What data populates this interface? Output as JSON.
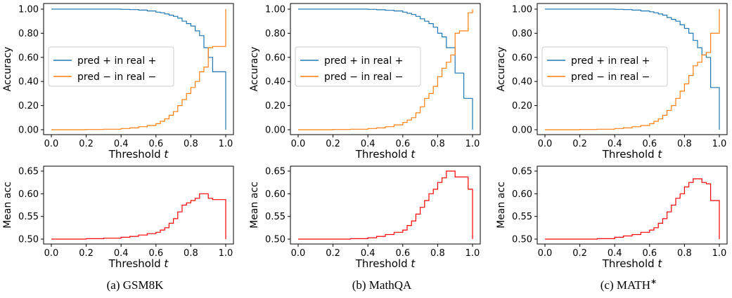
{
  "panels": [
    {
      "caption": "(a) GSM8K",
      "top": {
        "ylabel": "Accuracy",
        "xlabel": "Threshold t",
        "xticks": [
          "0.0",
          "0.2",
          "0.4",
          "0.6",
          "0.8",
          "1.0"
        ],
        "yticks": [
          "0.00",
          "0.20",
          "0.40",
          "0.60",
          "0.80",
          "1.00"
        ],
        "legend": [
          "pred + in real +",
          "pred − in real −"
        ]
      },
      "bottom": {
        "ylabel": "Mean acc",
        "xlabel": "Threshold t",
        "xticks": [
          "0.0",
          "0.2",
          "0.4",
          "0.6",
          "0.8",
          "1.0"
        ],
        "yticks": [
          "0.50",
          "0.55",
          "0.60",
          "0.65"
        ]
      }
    },
    {
      "caption": "(b) MathQA",
      "top": {
        "ylabel": "Accuracy",
        "xlabel": "Threshold t",
        "xticks": [
          "0.0",
          "0.2",
          "0.4",
          "0.6",
          "0.8",
          "1.0"
        ],
        "yticks": [
          "0.00",
          "0.20",
          "0.40",
          "0.60",
          "0.80",
          "1.00"
        ],
        "legend": [
          "pred + in real +",
          "pred − in real −"
        ]
      },
      "bottom": {
        "ylabel": "Mean acc",
        "xlabel": "Threshold t",
        "xticks": [
          "0.0",
          "0.2",
          "0.4",
          "0.6",
          "0.8",
          "1.0"
        ],
        "yticks": [
          "0.50",
          "0.55",
          "0.60",
          "0.65"
        ]
      }
    },
    {
      "caption": "(c) MATH*",
      "top": {
        "ylabel": "Accuracy",
        "xlabel": "Threshold t",
        "xticks": [
          "0.0",
          "0.2",
          "0.4",
          "0.6",
          "0.8",
          "1.0"
        ],
        "yticks": [
          "0.00",
          "0.20",
          "0.40",
          "0.60",
          "0.80",
          "1.00"
        ],
        "legend": [
          "pred + in real +",
          "pred − in real −"
        ]
      },
      "bottom": {
        "ylabel": "Mean acc",
        "xlabel": "Threshold t",
        "xticks": [
          "0.0",
          "0.2",
          "0.4",
          "0.6",
          "0.8",
          "1.0"
        ],
        "yticks": [
          "0.50",
          "0.55",
          "0.60",
          "0.65"
        ]
      }
    }
  ],
  "colors": {
    "pos": "#1f77b4",
    "neg": "#ff7f0e",
    "mean": "#ff0000"
  },
  "chart_data": [
    {
      "type": "line",
      "panel": "(a) GSM8K",
      "xlabel": "Threshold t",
      "ylabel": "Accuracy",
      "xlim": [
        0,
        1
      ],
      "ylim": [
        0,
        1
      ],
      "legend_position": "center-left",
      "x": [
        0.0,
        0.1,
        0.2,
        0.3,
        0.4,
        0.45,
        0.5,
        0.55,
        0.6,
        0.625,
        0.65,
        0.675,
        0.7,
        0.725,
        0.75,
        0.775,
        0.8,
        0.825,
        0.85,
        0.875,
        0.9,
        0.925,
        0.95,
        0.975,
        0.99,
        1.0
      ],
      "series": [
        {
          "name": "pred + in real +",
          "values": [
            1.0,
            1.0,
            1.0,
            1.0,
            0.998,
            0.996,
            0.992,
            0.985,
            0.975,
            0.97,
            0.96,
            0.95,
            0.94,
            0.925,
            0.9,
            0.88,
            0.86,
            0.82,
            0.78,
            0.68,
            0.6,
            0.48,
            0.48,
            0.48,
            0.48,
            0.0
          ]
        },
        {
          "name": "pred − in real −",
          "values": [
            0.0,
            0.0,
            0.002,
            0.004,
            0.01,
            0.015,
            0.025,
            0.035,
            0.05,
            0.07,
            0.09,
            0.12,
            0.15,
            0.2,
            0.25,
            0.3,
            0.35,
            0.4,
            0.48,
            0.52,
            0.68,
            0.69,
            0.69,
            0.69,
            0.69,
            1.0
          ]
        }
      ]
    },
    {
      "type": "line",
      "panel": "(a) GSM8K",
      "xlabel": "Threshold t",
      "ylabel": "Mean acc",
      "xlim": [
        0,
        1
      ],
      "ylim": [
        0.49,
        0.66
      ],
      "x": [
        0.0,
        0.1,
        0.2,
        0.3,
        0.4,
        0.45,
        0.5,
        0.55,
        0.6,
        0.625,
        0.65,
        0.675,
        0.7,
        0.725,
        0.75,
        0.775,
        0.8,
        0.825,
        0.85,
        0.875,
        0.9,
        0.925,
        0.95,
        0.975,
        0.99,
        1.0
      ],
      "series": [
        {
          "name": "",
          "values": [
            0.5,
            0.5,
            0.501,
            0.502,
            0.504,
            0.506,
            0.509,
            0.512,
            0.515,
            0.52,
            0.525,
            0.535,
            0.545,
            0.56,
            0.575,
            0.58,
            0.585,
            0.59,
            0.6,
            0.6,
            0.59,
            0.587,
            0.587,
            0.587,
            0.587,
            0.5
          ]
        }
      ]
    },
    {
      "type": "line",
      "panel": "(b) MathQA",
      "xlabel": "Threshold t",
      "ylabel": "Accuracy",
      "xlim": [
        0,
        1
      ],
      "ylim": [
        0,
        1
      ],
      "legend_position": "center-left",
      "x": [
        0.0,
        0.1,
        0.2,
        0.3,
        0.4,
        0.45,
        0.5,
        0.55,
        0.6,
        0.625,
        0.65,
        0.675,
        0.7,
        0.725,
        0.75,
        0.775,
        0.8,
        0.825,
        0.85,
        0.875,
        0.9,
        0.925,
        0.95,
        0.975,
        0.99,
        1.0
      ],
      "series": [
        {
          "name": "pred + in real +",
          "values": [
            1.0,
            1.0,
            1.0,
            1.0,
            0.998,
            0.995,
            0.99,
            0.985,
            0.975,
            0.965,
            0.955,
            0.94,
            0.92,
            0.9,
            0.88,
            0.85,
            0.8,
            0.77,
            0.68,
            0.68,
            0.47,
            0.47,
            0.26,
            0.26,
            0.26,
            0.0
          ]
        },
        {
          "name": "pred − in real −",
          "values": [
            0.0,
            0.0,
            0.002,
            0.004,
            0.01,
            0.015,
            0.025,
            0.04,
            0.06,
            0.08,
            0.1,
            0.14,
            0.19,
            0.26,
            0.3,
            0.36,
            0.44,
            0.51,
            0.56,
            0.62,
            0.8,
            0.82,
            0.82,
            0.97,
            0.97,
            1.0
          ]
        }
      ]
    },
    {
      "type": "line",
      "panel": "(b) MathQA",
      "xlabel": "Threshold t",
      "ylabel": "Mean acc",
      "xlim": [
        0,
        1
      ],
      "ylim": [
        0.49,
        0.66
      ],
      "x": [
        0.0,
        0.1,
        0.2,
        0.3,
        0.4,
        0.45,
        0.5,
        0.55,
        0.6,
        0.625,
        0.65,
        0.675,
        0.7,
        0.725,
        0.75,
        0.775,
        0.8,
        0.825,
        0.85,
        0.875,
        0.9,
        0.925,
        0.95,
        0.975,
        0.99,
        1.0
      ],
      "series": [
        {
          "name": "",
          "values": [
            0.5,
            0.5,
            0.5,
            0.501,
            0.503,
            0.506,
            0.51,
            0.515,
            0.52,
            0.53,
            0.54,
            0.555,
            0.57,
            0.585,
            0.6,
            0.61,
            0.625,
            0.635,
            0.65,
            0.65,
            0.637,
            0.637,
            0.637,
            0.61,
            0.61,
            0.5
          ]
        }
      ]
    },
    {
      "type": "line",
      "panel": "(c) MATH*",
      "xlabel": "Threshold t",
      "ylabel": "Accuracy",
      "xlim": [
        0,
        1
      ],
      "ylim": [
        0,
        1
      ],
      "legend_position": "center-left",
      "x": [
        0.0,
        0.1,
        0.2,
        0.3,
        0.4,
        0.45,
        0.5,
        0.55,
        0.6,
        0.625,
        0.65,
        0.675,
        0.7,
        0.725,
        0.75,
        0.775,
        0.8,
        0.825,
        0.85,
        0.875,
        0.9,
        0.925,
        0.95,
        0.975,
        0.99,
        1.0
      ],
      "series": [
        {
          "name": "pred + in real +",
          "values": [
            1.0,
            1.0,
            1.0,
            1.0,
            0.998,
            0.996,
            0.992,
            0.985,
            0.978,
            0.97,
            0.96,
            0.95,
            0.93,
            0.915,
            0.9,
            0.87,
            0.84,
            0.8,
            0.74,
            0.68,
            0.62,
            0.6,
            0.35,
            0.35,
            0.35,
            0.0
          ]
        },
        {
          "name": "pred − in real −",
          "values": [
            0.0,
            0.0,
            0.002,
            0.004,
            0.01,
            0.015,
            0.025,
            0.035,
            0.05,
            0.07,
            0.09,
            0.12,
            0.16,
            0.2,
            0.26,
            0.32,
            0.38,
            0.45,
            0.53,
            0.56,
            0.62,
            0.64,
            0.8,
            0.8,
            0.8,
            1.0
          ]
        }
      ]
    },
    {
      "type": "line",
      "panel": "(c) MATH*",
      "xlabel": "Threshold t",
      "ylabel": "Mean acc",
      "xlim": [
        0,
        1
      ],
      "ylim": [
        0.49,
        0.66
      ],
      "x": [
        0.0,
        0.1,
        0.2,
        0.3,
        0.4,
        0.45,
        0.5,
        0.55,
        0.6,
        0.625,
        0.65,
        0.675,
        0.7,
        0.725,
        0.75,
        0.775,
        0.8,
        0.825,
        0.85,
        0.875,
        0.9,
        0.925,
        0.95,
        0.975,
        0.99,
        1.0
      ],
      "series": [
        {
          "name": "",
          "values": [
            0.5,
            0.5,
            0.5,
            0.501,
            0.504,
            0.507,
            0.51,
            0.515,
            0.52,
            0.525,
            0.535,
            0.545,
            0.56,
            0.575,
            0.59,
            0.6,
            0.615,
            0.625,
            0.633,
            0.633,
            0.625,
            0.622,
            0.585,
            0.585,
            0.585,
            0.5
          ]
        }
      ]
    }
  ]
}
